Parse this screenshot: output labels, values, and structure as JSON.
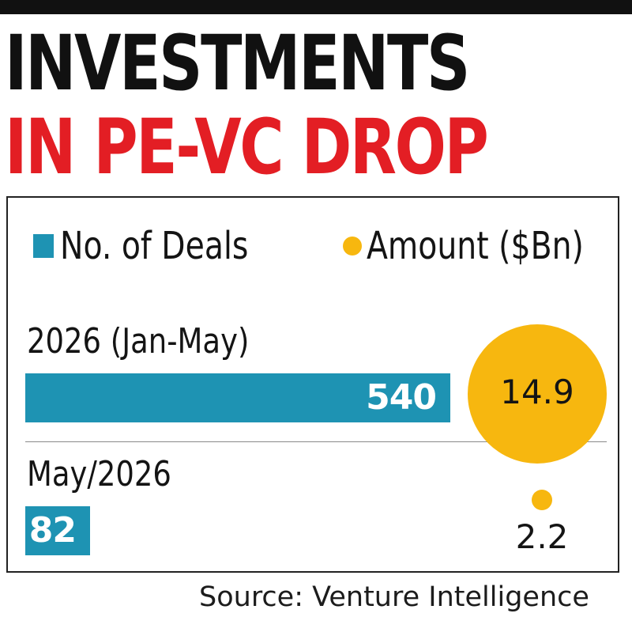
{
  "title_line1": "INVESTMENTS",
  "title_line2": "IN PE-VC DROP",
  "colors": {
    "title_line1": "#111111",
    "title_line2": "#e31e24",
    "deals": "#1e93b3",
    "amount": "#f7b70f"
  },
  "chart_data": {
    "type": "bar",
    "title": "INVESTMENTS IN PE-VC DROP",
    "legend": [
      {
        "label": "No. of Deals",
        "marker": "square",
        "color": "#1e93b3"
      },
      {
        "label": "Amount ($Bn)",
        "marker": "circle",
        "color": "#f7b70f"
      }
    ],
    "legend_position": "top",
    "categories": [
      "2026 (Jan-May)",
      "May/2026"
    ],
    "series": [
      {
        "name": "No. of Deals",
        "values": [
          540,
          82
        ],
        "value_labels": [
          "540",
          "82"
        ]
      },
      {
        "name": "Amount ($Bn)",
        "values": [
          14.9,
          2.2
        ],
        "value_labels": [
          "14.9",
          "2.2"
        ]
      }
    ],
    "source": "Source: Venture Intelligence",
    "grid": false
  }
}
